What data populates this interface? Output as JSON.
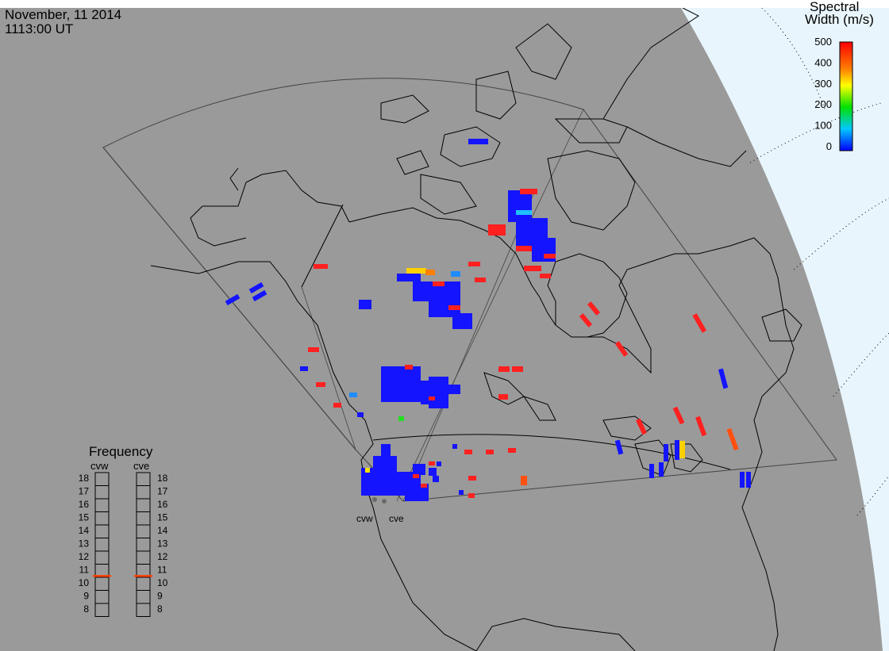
{
  "header": {
    "date": "November, 11 2014",
    "time": "1113:00 UT"
  },
  "colorbar": {
    "title_line1": "Spectral",
    "title_line2": "Width (m/s)",
    "ticks": [
      "500",
      "400",
      "300",
      "200",
      "100",
      "0"
    ],
    "min": 0,
    "max": 500
  },
  "frequency": {
    "title": "Frequency",
    "scale_min": 8,
    "scale_max": 18,
    "radars": [
      {
        "code": "cvw",
        "value": 10.6
      },
      {
        "code": "cve",
        "value": 10.6
      }
    ],
    "ticks": [
      "18",
      "17",
      "16",
      "15",
      "14",
      "13",
      "12",
      "11",
      "10",
      "9",
      "8"
    ]
  },
  "radars": [
    "cvw",
    "cve"
  ],
  "colors": {
    "background_land": "#9a9a9a",
    "space": "#e8f5fc",
    "scatter_low": "#1010ff",
    "scatter_high": "#ff1010",
    "freq_marker": "#ff4000"
  }
}
